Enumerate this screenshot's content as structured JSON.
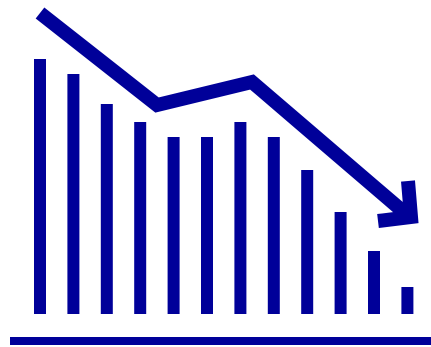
{
  "icon": {
    "name": "declining-bar-chart-icon",
    "color": "#000099",
    "background": "#ffffff"
  },
  "bars": {
    "levels": [
      0.85,
      0.8,
      0.7,
      0.64,
      0.59,
      0.59,
      0.64,
      0.59,
      0.48,
      0.34,
      0.21,
      0.09
    ]
  },
  "trend": {
    "direction": "down"
  }
}
